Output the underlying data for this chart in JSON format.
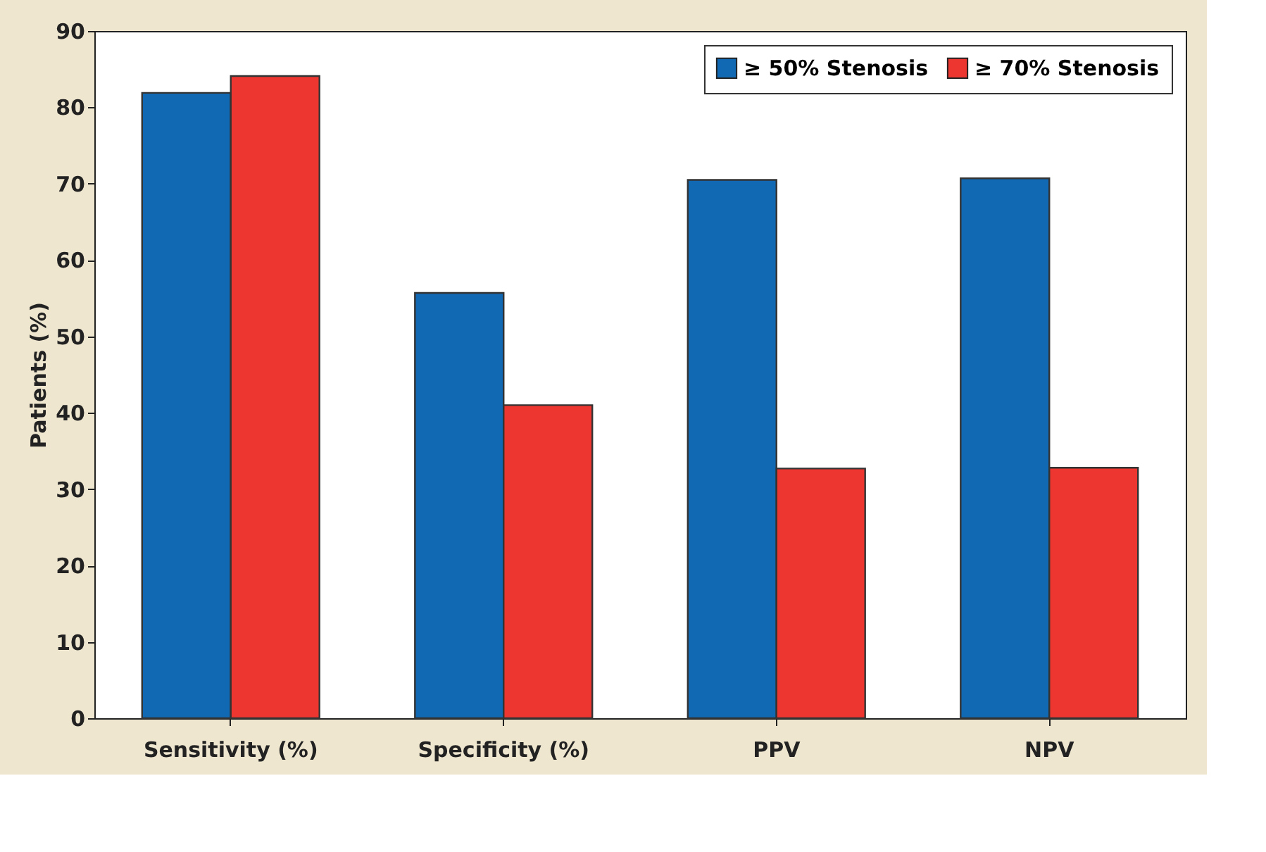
{
  "chart_data": {
    "type": "bar",
    "ylabel": "Patients (%)",
    "categories": [
      "Sensitivity (%)",
      "Specificity (%)",
      "PPV",
      "NPV"
    ],
    "series": [
      {
        "name": "≥ 50% Stenosis",
        "color": "#1269b3",
        "values": [
          81.9,
          55.7,
          70.5,
          70.7
        ]
      },
      {
        "name": "≥ 70% Stenosis",
        "color": "#ee3631",
        "values": [
          84.1,
          41.0,
          32.7,
          32.8
        ]
      }
    ],
    "ylim": [
      0,
      90
    ],
    "yticks": [
      0,
      10,
      20,
      30,
      40,
      50,
      60,
      70,
      80,
      90
    ],
    "grid": false,
    "legend": "top right"
  }
}
